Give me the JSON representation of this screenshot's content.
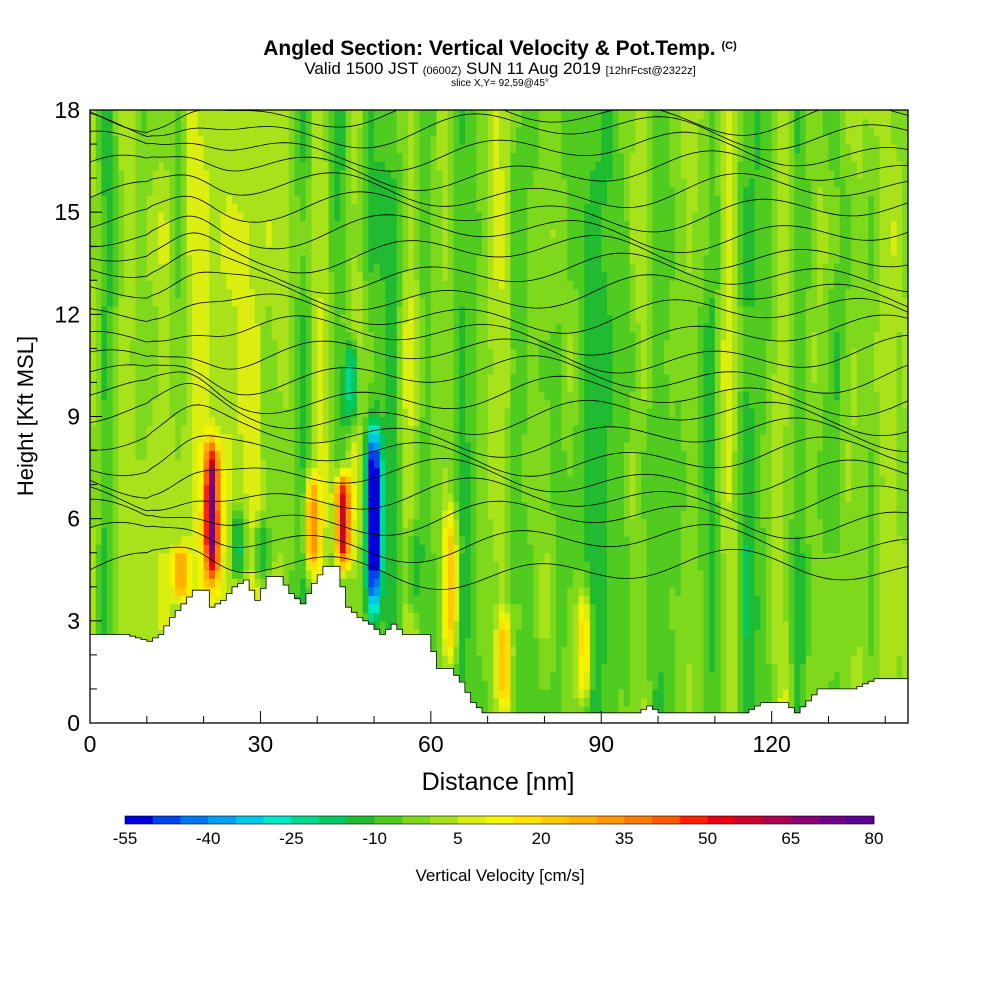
{
  "header": {
    "title": "Angled Section: Vertical Velocity & Pot.Temp.",
    "title_unit": "(C)",
    "valid_prefix": "Valid 1500 JST",
    "valid_utc": "(0600Z)",
    "valid_date": "SUN 11 Aug 2019",
    "forecast": "[12hrFcst@2322z]",
    "slice": "slice X,Y= 92,59@45°"
  },
  "chart_data": {
    "type": "heatmap",
    "title": "Angled Section: Vertical Velocity & Pot.Temp.",
    "xlabel": "Distance [nm]",
    "ylabel": "Height [Kft MSL]",
    "xlim": [
      0,
      144
    ],
    "ylim": [
      0,
      18
    ],
    "x_ticks": [
      0,
      30,
      60,
      90,
      120
    ],
    "y_ticks": [
      0,
      3,
      6,
      9,
      12,
      15,
      18
    ],
    "colorbar": {
      "label": "Vertical Velocity [cm/s]",
      "tick_labels": [
        "-55",
        "-40",
        "-25",
        "-10",
        "5",
        "20",
        "35",
        "50",
        "65",
        "80"
      ],
      "min": -55,
      "max": 80,
      "step": 5,
      "colors": [
        "#0000dd",
        "#0044ee",
        "#0077f0",
        "#00a0f0",
        "#00c8e8",
        "#00e6c8",
        "#00d890",
        "#00c860",
        "#20bb30",
        "#50cc20",
        "#7ed81c",
        "#a8e21a",
        "#dcee10",
        "#f4f400",
        "#ffe000",
        "#ffc800",
        "#ffb000",
        "#ff9600",
        "#ff7c00",
        "#ff5a00",
        "#ff2000",
        "#e80010",
        "#c8002a",
        "#aa0050",
        "#8a0075",
        "#70008a",
        "#5a0090"
      ]
    },
    "terrain_height_kft": {
      "x": [
        0,
        6,
        10,
        12,
        14,
        16,
        18,
        20,
        21,
        23,
        25,
        27,
        29,
        31,
        33,
        35,
        37,
        39,
        41,
        43,
        45,
        47,
        49,
        51,
        53,
        55,
        57,
        59,
        61,
        63,
        65,
        67,
        69,
        72,
        76,
        82,
        88,
        92,
        96,
        98,
        100,
        104,
        110,
        115,
        118,
        122,
        124,
        128,
        134,
        138,
        144
      ],
      "height": [
        2.6,
        2.6,
        2.4,
        2.6,
        3.1,
        3.5,
        3.9,
        3.9,
        3.4,
        3.6,
        4.0,
        4.2,
        3.6,
        4.3,
        4.3,
        3.8,
        3.5,
        4.1,
        4.6,
        4.6,
        3.4,
        3.1,
        2.9,
        2.6,
        2.9,
        2.6,
        2.6,
        2.6,
        1.6,
        1.6,
        1.2,
        0.6,
        0.3,
        0.3,
        0.3,
        0.3,
        0.3,
        0.3,
        0.3,
        0.5,
        0.3,
        0.3,
        0.3,
        0.3,
        0.6,
        0.6,
        0.3,
        1.0,
        1.0,
        1.3,
        1.3
      ]
    },
    "vertical_velocity_features": [
      {
        "x_center": 21.5,
        "z_bottom": 4.0,
        "z_top": 8.5,
        "peak_cm_s": 70
      },
      {
        "x_center": 44.5,
        "z_bottom": 4.4,
        "z_top": 7.5,
        "peak_cm_s": 65
      },
      {
        "x_center": 50,
        "z_bottom": 3.0,
        "z_top": 9.0,
        "peak_cm_s": -55
      },
      {
        "x_center": 46,
        "z_bottom": 8.5,
        "z_top": 11.5,
        "peak_cm_s": -25
      },
      {
        "x_center": 39,
        "z_bottom": 4.3,
        "z_top": 7.5,
        "peak_cm_s": 35
      },
      {
        "x_center": 63.5,
        "z_bottom": 1.6,
        "z_top": 6.5,
        "peak_cm_s": 30
      },
      {
        "x_center": 16,
        "z_bottom": 3.6,
        "z_top": 5.3,
        "peak_cm_s": 30
      },
      {
        "x_center": 87,
        "z_bottom": 0.3,
        "z_top": 4.0,
        "peak_cm_s": 25
      },
      {
        "x_center": 73,
        "z_bottom": 0.3,
        "z_top": 3.5,
        "peak_cm_s": 25
      },
      {
        "x_center": 26,
        "z_bottom": 4.2,
        "z_top": 6.5,
        "peak_cm_s": -20
      },
      {
        "x_center": 30,
        "z_bottom": 4.2,
        "z_top": 6.0,
        "peak_cm_s": -15
      },
      {
        "x_center": 57,
        "z_bottom": 3.0,
        "z_top": 6.0,
        "peak_cm_s": -15
      }
    ],
    "potential_temperature_isentropes_kft": [
      4.5,
      5.3,
      6.0,
      6.6,
      7.2,
      7.8,
      8.4,
      9.0,
      9.6,
      10.2,
      10.8,
      11.4,
      12.0,
      12.6,
      13.2,
      13.8,
      14.4,
      15.0,
      15.6,
      16.2,
      16.8,
      17.4,
      17.85
    ]
  }
}
